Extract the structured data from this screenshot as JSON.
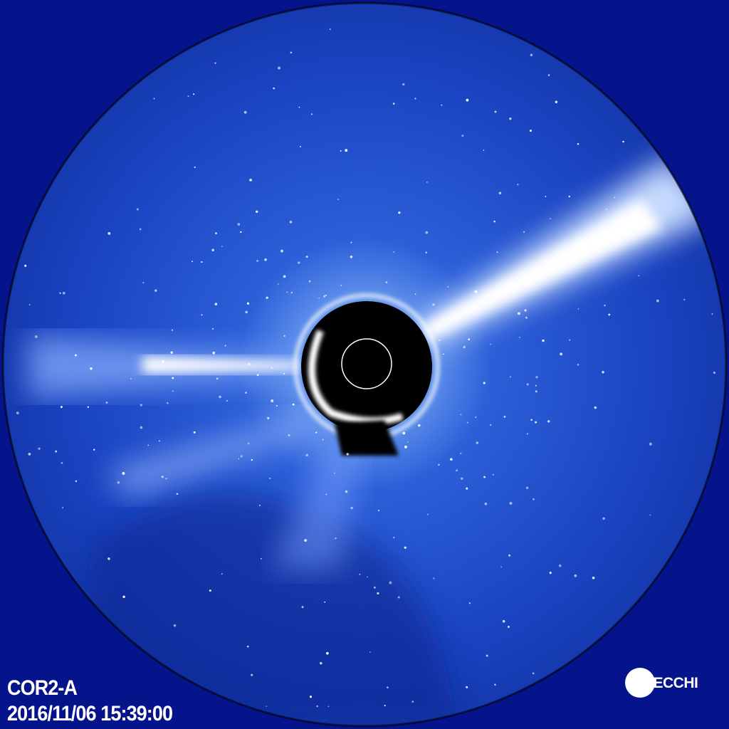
{
  "overlay": {
    "instrument": "COR2-A",
    "timestamp": "2016/11/06 15:39:00",
    "logo": "SECCHI"
  },
  "colors": {
    "background": "#06148c",
    "field": "#1d46c8",
    "streamer": "#ffffff",
    "occulter": "#000000"
  }
}
